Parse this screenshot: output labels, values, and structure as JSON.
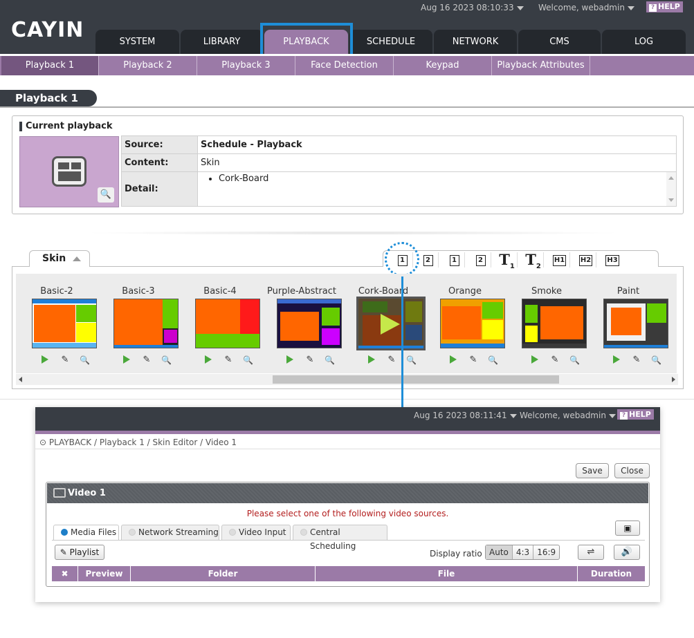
{
  "header": {
    "logo": "CAYIN",
    "datetime": "Aug 16 2023 08:10:33",
    "welcome": "Welcome, webadmin",
    "help": "HELP"
  },
  "nav": {
    "tabs": [
      {
        "label": "SYSTEM"
      },
      {
        "label": "LIBRARY"
      },
      {
        "label": "PLAYBACK"
      },
      {
        "label": "SCHEDULE"
      },
      {
        "label": "NETWORK"
      },
      {
        "label": "CMS"
      },
      {
        "label": "LOG"
      }
    ],
    "active": "PLAYBACK"
  },
  "subnav": {
    "tabs": [
      {
        "label": "Playback 1"
      },
      {
        "label": "Playback 2"
      },
      {
        "label": "Playback 3"
      },
      {
        "label": "Face Detection"
      },
      {
        "label": "Keypad"
      },
      {
        "label": "Playback Attributes"
      }
    ]
  },
  "page": {
    "title": "Playback 1"
  },
  "current_playback": {
    "heading": "Current playback",
    "source_label": "Source:",
    "source_value": "Schedule - Playback",
    "content_label": "Content:",
    "content_value": "Skin",
    "detail_label": "Detail:",
    "detail_items": [
      "Cork-Board"
    ]
  },
  "skin_section": {
    "tab_label": "Skin",
    "toolbar": [
      {
        "icon": "video-1-icon",
        "text": "1"
      },
      {
        "icon": "video-2-icon",
        "text": "2"
      },
      {
        "icon": "image-1-icon",
        "text": "1"
      },
      {
        "icon": "image-2-icon",
        "text": "2"
      },
      {
        "icon": "text-1-icon",
        "text": "T",
        "sub": "1"
      },
      {
        "icon": "text-2-icon",
        "text": "T",
        "sub": "2"
      },
      {
        "icon": "html-1-icon",
        "text": "H1"
      },
      {
        "icon": "html-2-icon",
        "text": "H2"
      },
      {
        "icon": "html-3-icon",
        "text": "H3"
      }
    ],
    "skins": [
      {
        "name": "Basic-2"
      },
      {
        "name": "Basic-3"
      },
      {
        "name": "Basic-4"
      },
      {
        "name": "Purple-Abstract"
      },
      {
        "name": "Cork-Board",
        "selected": true
      },
      {
        "name": "Orange"
      },
      {
        "name": "Smoke"
      },
      {
        "name": "Paint"
      }
    ]
  },
  "editor": {
    "datetime": "Aug 16 2023 08:11:41",
    "welcome": "Welcome, webadmin",
    "help": "HELP",
    "breadcrumb": "PLAYBACK / Playback 1 / Skin Editor / Video 1",
    "save_label": "Save",
    "close_label": "Close",
    "panel_title": "Video 1",
    "message": "Please select one of the following video sources.",
    "tabs": [
      {
        "label": "Media Files",
        "active": true
      },
      {
        "label": "Network Streaming"
      },
      {
        "label": "Video Input"
      },
      {
        "label": "Central Scheduling"
      }
    ],
    "playlist_label": "Playlist",
    "display_ratio_label": "Display ratio",
    "ratios": [
      "Auto",
      "4:3",
      "16:9"
    ],
    "ratio_active": "Auto",
    "columns": [
      "Preview",
      "Folder",
      "File",
      "Duration"
    ]
  },
  "colors": {
    "header_bg": "#383d44",
    "accent_purple": "#9b7aa7",
    "highlight_blue": "#1e8ed8"
  }
}
